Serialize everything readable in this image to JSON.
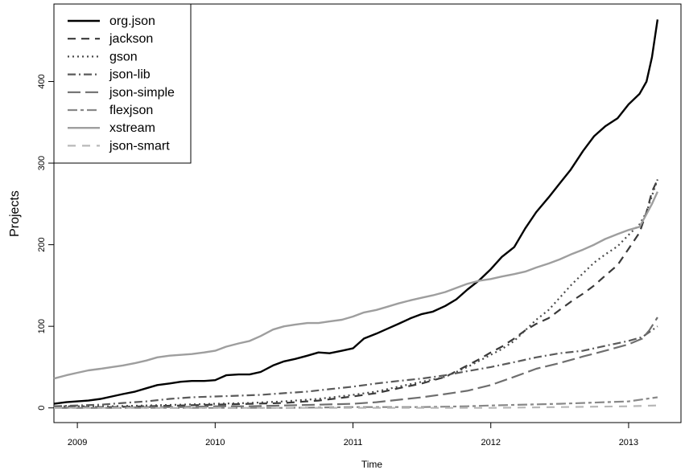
{
  "chart_data": {
    "type": "line",
    "xlabel": "Time",
    "ylabel": "Projects",
    "xlim": [
      2008.83,
      2013.38
    ],
    "ylim": [
      -18,
      495
    ],
    "x_ticks": [
      2009,
      2010,
      2011,
      2012,
      2013
    ],
    "x_tick_labels": [
      "2009",
      "2010",
      "2011",
      "2012",
      "2013"
    ],
    "y_ticks": [
      0,
      100,
      200,
      300,
      400
    ],
    "y_tick_labels": [
      "0",
      "100",
      "200",
      "300",
      "400"
    ],
    "grid": false,
    "legend": "top-left",
    "series": [
      {
        "name": "org.json",
        "color": "#000000",
        "dash": "solid",
        "width": 2.4,
        "x": [
          2008.83,
          2008.92,
          2009.0,
          2009.08,
          2009.17,
          2009.25,
          2009.33,
          2009.42,
          2009.5,
          2009.58,
          2009.67,
          2009.75,
          2009.83,
          2009.92,
          2010.0,
          2010.08,
          2010.17,
          2010.25,
          2010.33,
          2010.42,
          2010.5,
          2010.58,
          2010.67,
          2010.75,
          2010.83,
          2010.92,
          2011.0,
          2011.08,
          2011.17,
          2011.25,
          2011.33,
          2011.42,
          2011.5,
          2011.58,
          2011.67,
          2011.75,
          2011.83,
          2011.92,
          2012.0,
          2012.08,
          2012.17,
          2012.25,
          2012.33,
          2012.42,
          2012.5,
          2012.58,
          2012.67,
          2012.75,
          2012.83,
          2012.92,
          2013.0,
          2013.08,
          2013.13,
          2013.17,
          2013.21
        ],
        "y": [
          5,
          7,
          8,
          9,
          11,
          14,
          17,
          20,
          24,
          28,
          30,
          32,
          33,
          33,
          34,
          40,
          41,
          41,
          44,
          52,
          57,
          60,
          64,
          68,
          67,
          70,
          73,
          85,
          91,
          97,
          103,
          110,
          115,
          118,
          125,
          133,
          145,
          157,
          170,
          185,
          197,
          220,
          240,
          258,
          275,
          292,
          315,
          333,
          345,
          355,
          372,
          385,
          400,
          430,
          476
        ]
      },
      {
        "name": "jackson",
        "color": "#3a3a3a",
        "dash": "10,7",
        "width": 2.2,
        "x": [
          2008.83,
          2009.0,
          2009.25,
          2009.5,
          2009.75,
          2010.0,
          2010.25,
          2010.5,
          2010.75,
          2011.0,
          2011.17,
          2011.33,
          2011.5,
          2011.67,
          2011.75,
          2011.83,
          2011.92,
          2012.0,
          2012.08,
          2012.17,
          2012.25,
          2012.33,
          2012.42,
          2012.5,
          2012.58,
          2012.67,
          2012.75,
          2012.83,
          2012.92,
          2013.0,
          2013.08,
          2013.13,
          2013.17,
          2013.21
        ],
        "y": [
          1,
          1,
          1,
          2,
          3,
          4,
          5,
          6,
          9,
          14,
          18,
          24,
          30,
          38,
          45,
          52,
          60,
          68,
          75,
          85,
          95,
          103,
          110,
          120,
          130,
          140,
          150,
          162,
          175,
          195,
          215,
          240,
          265,
          280
        ]
      },
      {
        "name": "gson",
        "color": "#4a4a4a",
        "dash": "2,4",
        "width": 2.2,
        "x": [
          2008.83,
          2009.0,
          2009.25,
          2009.5,
          2009.75,
          2010.0,
          2010.25,
          2010.5,
          2010.75,
          2011.0,
          2011.17,
          2011.33,
          2011.5,
          2011.67,
          2011.75,
          2011.83,
          2011.92,
          2012.0,
          2012.08,
          2012.17,
          2012.25,
          2012.33,
          2012.42,
          2012.5,
          2012.58,
          2012.67,
          2012.75,
          2012.83,
          2012.92,
          2013.0,
          2013.08,
          2013.13,
          2013.17,
          2013.21
        ],
        "y": [
          2,
          2,
          2,
          3,
          4,
          5,
          6,
          8,
          11,
          16,
          20,
          26,
          32,
          38,
          44,
          50,
          58,
          65,
          72,
          82,
          95,
          108,
          120,
          135,
          150,
          165,
          178,
          188,
          198,
          212,
          225,
          240,
          260,
          280
        ]
      },
      {
        "name": "json-lib",
        "color": "#5a5a5a",
        "dash": "10,4,2,4",
        "width": 2.2,
        "x": [
          2008.83,
          2009.0,
          2009.17,
          2009.33,
          2009.5,
          2009.67,
          2009.83,
          2010.0,
          2010.17,
          2010.33,
          2010.5,
          2010.67,
          2010.83,
          2011.0,
          2011.17,
          2011.33,
          2011.5,
          2011.67,
          2011.83,
          2012.0,
          2012.17,
          2012.33,
          2012.5,
          2012.67,
          2012.83,
          2013.0,
          2013.1,
          2013.21
        ],
        "y": [
          2,
          3,
          4,
          6,
          8,
          11,
          13,
          14,
          15,
          16,
          18,
          20,
          23,
          26,
          30,
          33,
          36,
          40,
          45,
          50,
          56,
          62,
          67,
          70,
          76,
          82,
          87,
          100
        ]
      },
      {
        "name": "json-simple",
        "color": "#6e6e6e",
        "dash": "16,6",
        "width": 2.2,
        "x": [
          2008.83,
          2009.0,
          2009.25,
          2009.5,
          2009.75,
          2010.0,
          2010.25,
          2010.5,
          2010.75,
          2011.0,
          2011.17,
          2011.33,
          2011.5,
          2011.67,
          2011.83,
          2012.0,
          2012.17,
          2012.33,
          2012.5,
          2012.67,
          2012.83,
          2013.0,
          2013.1,
          2013.15,
          2013.21
        ],
        "y": [
          0,
          0,
          0,
          1,
          1,
          2,
          2,
          3,
          4,
          5,
          7,
          10,
          13,
          17,
          21,
          28,
          38,
          48,
          55,
          63,
          70,
          78,
          85,
          95,
          111
        ]
      },
      {
        "name": "flexjson",
        "color": "#888888",
        "dash": "12,4,4,4",
        "width": 2.2,
        "x": [
          2008.83,
          2009.5,
          2010.0,
          2010.5,
          2011.0,
          2011.5,
          2011.83,
          2012.0,
          2012.5,
          2013.0,
          2013.21
        ],
        "y": [
          0,
          0,
          0,
          0,
          1,
          1,
          2,
          3,
          5,
          8,
          13
        ]
      },
      {
        "name": "xstream",
        "color": "#9e9e9e",
        "dash": "solid",
        "width": 2.4,
        "x": [
          2008.83,
          2008.92,
          2009.0,
          2009.08,
          2009.17,
          2009.25,
          2009.33,
          2009.42,
          2009.5,
          2009.58,
          2009.67,
          2009.75,
          2009.83,
          2009.92,
          2010.0,
          2010.08,
          2010.17,
          2010.25,
          2010.33,
          2010.42,
          2010.5,
          2010.58,
          2010.67,
          2010.75,
          2010.83,
          2010.92,
          2011.0,
          2011.08,
          2011.17,
          2011.25,
          2011.33,
          2011.42,
          2011.5,
          2011.58,
          2011.67,
          2011.75,
          2011.83,
          2011.92,
          2012.0,
          2012.08,
          2012.17,
          2012.25,
          2012.33,
          2012.42,
          2012.5,
          2012.58,
          2012.67,
          2012.75,
          2012.83,
          2012.92,
          2013.0,
          2013.08,
          2013.17,
          2013.21
        ],
        "y": [
          36,
          40,
          43,
          46,
          48,
          50,
          52,
          55,
          58,
          62,
          64,
          65,
          66,
          68,
          70,
          75,
          79,
          82,
          88,
          96,
          100,
          102,
          104,
          104,
          106,
          108,
          112,
          117,
          120,
          124,
          128,
          132,
          135,
          138,
          142,
          147,
          152,
          156,
          158,
          161,
          164,
          167,
          172,
          177,
          182,
          188,
          194,
          200,
          207,
          213,
          218,
          222,
          250,
          265
        ]
      },
      {
        "name": "json-smart",
        "color": "#b8b8b8",
        "dash": "10,8",
        "width": 2.2,
        "x": [
          2008.83,
          2009.5,
          2010.0,
          2010.5,
          2011.0,
          2011.5,
          2012.0,
          2012.5,
          2013.0,
          2013.21
        ],
        "y": [
          0,
          0,
          0,
          0,
          0,
          0,
          0,
          1,
          2,
          3
        ]
      }
    ]
  }
}
